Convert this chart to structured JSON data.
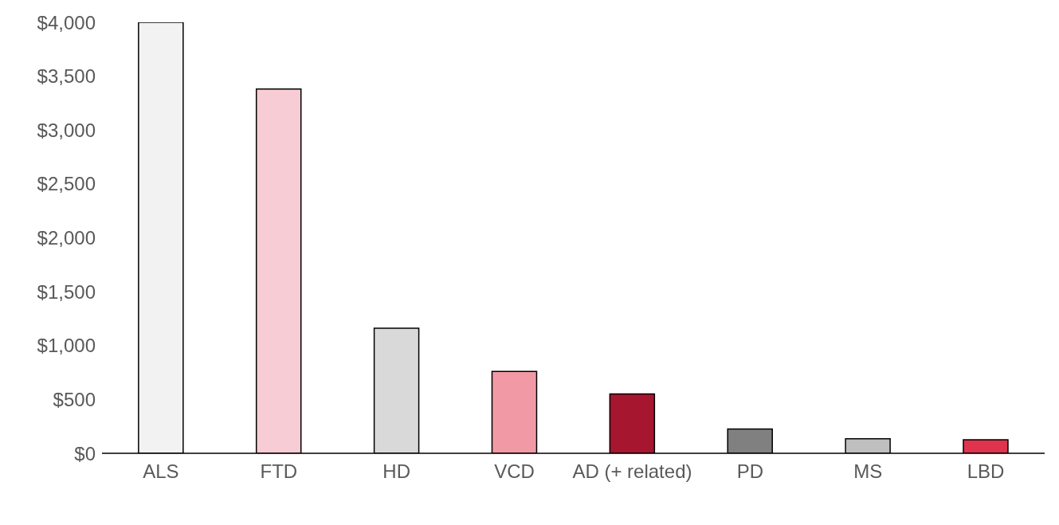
{
  "chart_data": {
    "type": "bar",
    "categories": [
      "ALS",
      "FTD",
      "HD",
      "VCD",
      "AD (+ related)",
      "PD",
      "MS",
      "LBD"
    ],
    "values": [
      4000,
      3380,
      1160,
      760,
      550,
      225,
      135,
      125
    ],
    "colors": [
      "#f2f2f2",
      "#f8ccd4",
      "#d9d9d9",
      "#f19aa5",
      "#a6172f",
      "#808080",
      "#bfbfbf",
      "#e0334d"
    ],
    "ylim": [
      0,
      4000
    ],
    "yticks": [
      {
        "value": 0,
        "label": "$0"
      },
      {
        "value": 500,
        "label": "$500"
      },
      {
        "value": 1000,
        "label": "$1,000"
      },
      {
        "value": 1500,
        "label": "$1,500"
      },
      {
        "value": 2000,
        "label": "$2,000"
      },
      {
        "value": 2500,
        "label": "$2,500"
      },
      {
        "value": 3000,
        "label": "$3,000"
      },
      {
        "value": 3500,
        "label": "$3,500"
      },
      {
        "value": 4000,
        "label": "$4,000"
      }
    ],
    "grid": false,
    "legend": false
  }
}
